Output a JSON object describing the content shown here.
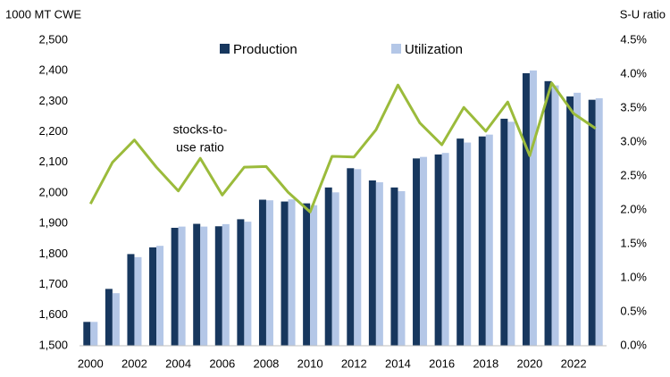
{
  "chart_data": {
    "type": "bar",
    "y_label": "1000 MT CWE",
    "y2_label": "S-U ratio",
    "annotation": [
      "stocks-to-",
      "use ratio"
    ],
    "x": [
      2000,
      2001,
      2002,
      2003,
      2004,
      2005,
      2006,
      2007,
      2008,
      2009,
      2010,
      2011,
      2012,
      2013,
      2014,
      2015,
      2016,
      2017,
      2018,
      2019,
      2020,
      2021,
      2022,
      2023
    ],
    "xlim": [
      1999.5,
      2023.5
    ],
    "xticks": [
      2000,
      2002,
      2004,
      2006,
      2008,
      2010,
      2012,
      2014,
      2016,
      2018,
      2020,
      2022
    ],
    "ylim": [
      1500,
      2500
    ],
    "yticks": [
      {
        "value": 1500,
        "label": "1,500"
      },
      {
        "value": 1600,
        "label": "1,600"
      },
      {
        "value": 1700,
        "label": "1,700"
      },
      {
        "value": 1800,
        "label": "1,800"
      },
      {
        "value": 1900,
        "label": "1,900"
      },
      {
        "value": 2000,
        "label": "2,000"
      },
      {
        "value": 2100,
        "label": "2,100"
      },
      {
        "value": 2200,
        "label": "2,200"
      },
      {
        "value": 2300,
        "label": "2,300"
      },
      {
        "value": 2400,
        "label": "2,400"
      },
      {
        "value": 2500,
        "label": "2,500"
      }
    ],
    "y2lim": [
      0,
      4.5
    ],
    "y2ticks": [
      {
        "value": 0,
        "label": "0.0%"
      },
      {
        "value": 0.5,
        "label": "0.5%"
      },
      {
        "value": 1,
        "label": "1.0%"
      },
      {
        "value": 1.5,
        "label": "1.5%"
      },
      {
        "value": 2,
        "label": "2.0%"
      },
      {
        "value": 2.5,
        "label": "2.5%"
      },
      {
        "value": 3,
        "label": "3.0%"
      },
      {
        "value": 3.5,
        "label": "3.5%"
      },
      {
        "value": 4,
        "label": "4.0%"
      },
      {
        "value": 4.5,
        "label": "4.5%"
      }
    ],
    "series": [
      {
        "name": "Production",
        "color": "#17375e",
        "type": "bar",
        "values": [
          1578,
          1686,
          1800,
          1822,
          1886,
          1899,
          1891,
          1914,
          1978,
          1972,
          1966,
          2018,
          2081,
          2041,
          2018,
          2113,
          2126,
          2178,
          2185,
          2243,
          2392,
          2366,
          2316,
          2305
        ]
      },
      {
        "name": "Utilization",
        "color": "#b4c7e7",
        "type": "bar",
        "values": [
          1578,
          1672,
          1790,
          1827,
          1890,
          1890,
          1898,
          1906,
          1976,
          1979,
          1960,
          2002,
          2078,
          2035,
          2006,
          2118,
          2131,
          2165,
          2191,
          2233,
          2401,
          2352,
          2328,
          2310
        ]
      },
      {
        "color": "#9bbb3b",
        "type": "line",
        "axis": "y2",
        "values": [
          2.09,
          2.7,
          3.03,
          2.63,
          2.28,
          2.76,
          2.22,
          2.63,
          2.64,
          2.26,
          1.97,
          2.79,
          2.78,
          3.18,
          3.84,
          3.28,
          2.96,
          3.51,
          3.16,
          3.59,
          2.8,
          3.87,
          3.42,
          3.2
        ]
      }
    ]
  }
}
